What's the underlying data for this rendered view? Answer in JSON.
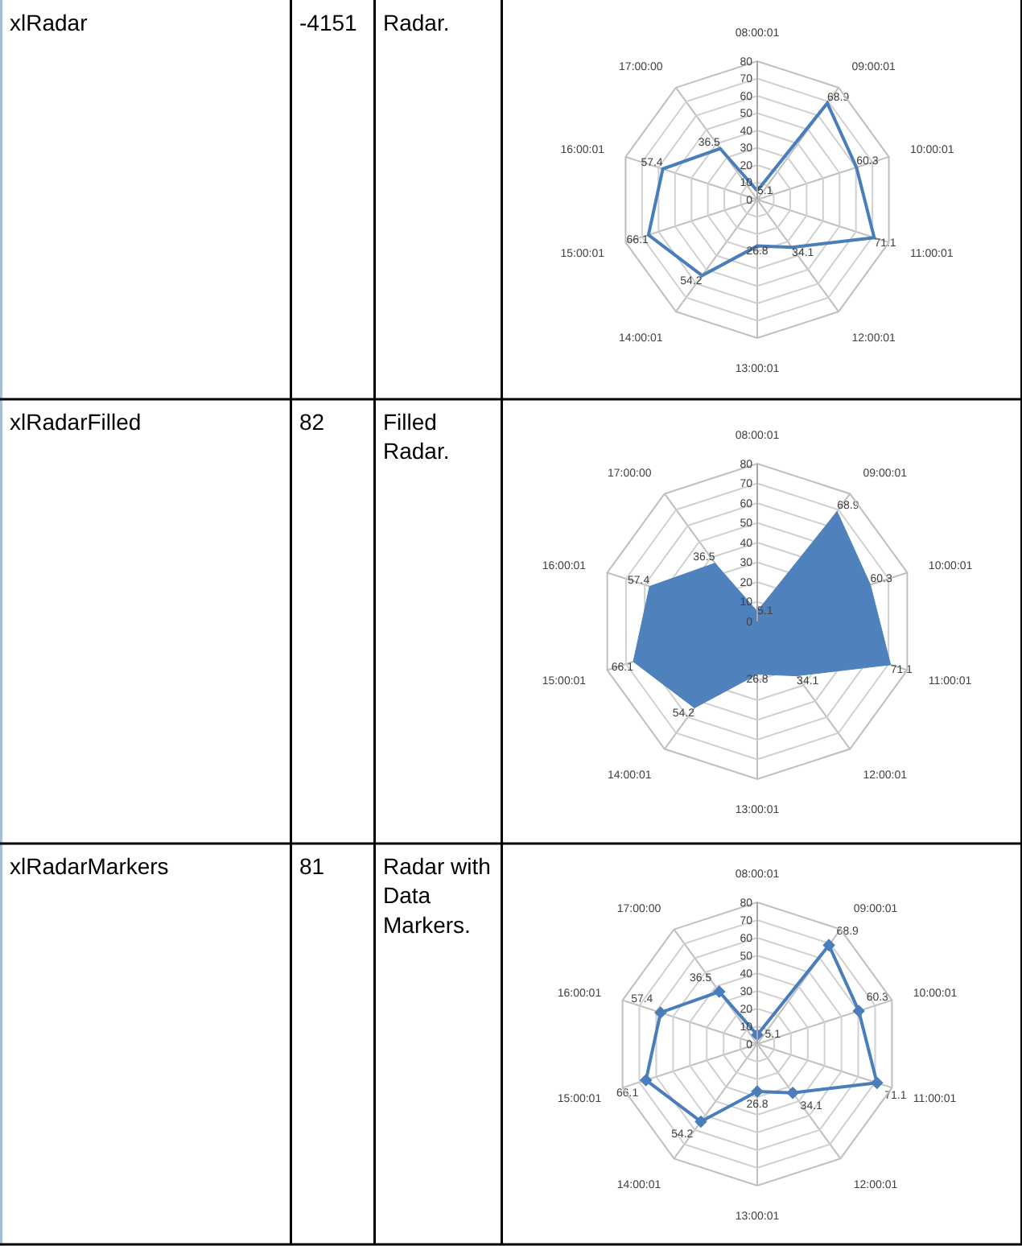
{
  "chart_data": [
    {
      "type": "other",
      "annotations": [
        "xlRadar",
        "-4151",
        "Radar."
      ]
    },
    {
      "type": "radar",
      "categories": [
        "08:00:01",
        "09:00:01",
        "10:00:01",
        "11:00:01",
        "12:00:01",
        "13:00:01",
        "14:00:01",
        "15:00:01",
        "16:00:01",
        "17:00:00"
      ],
      "series": [
        {
          "color": "#4a7ebb",
          "values": [
            5.1,
            68.9,
            60.3,
            71.1,
            34.1,
            26.8,
            54.2,
            66.1,
            57.4,
            36.5
          ]
        }
      ],
      "ylim": [
        0,
        80
      ],
      "yticks": [
        0,
        10,
        20,
        30,
        40,
        50,
        60,
        70,
        80
      ],
      "grid": true,
      "data_labels": true,
      "line_style": "solid"
    },
    {
      "type": "other",
      "annotations": [
        "xlRadarFilled",
        "82",
        "Filled Radar."
      ]
    },
    {
      "type": "radar",
      "categories": [
        "08:00:01",
        "09:00:01",
        "10:00:01",
        "11:00:01",
        "12:00:01",
        "13:00:01",
        "14:00:01",
        "15:00:01",
        "16:00:01",
        "17:00:00"
      ],
      "series": [
        {
          "type": "area",
          "color": "#4f81bd",
          "values": [
            5.1,
            68.9,
            60.3,
            71.1,
            34.1,
            26.8,
            54.2,
            66.1,
            57.4,
            36.5
          ]
        }
      ],
      "ylim": [
        0,
        80
      ],
      "yticks": [
        0,
        10,
        20,
        30,
        40,
        50,
        60,
        70,
        80
      ],
      "grid": true,
      "data_labels": true
    },
    {
      "type": "other",
      "annotations": [
        "xlRadarMarkers",
        "81",
        "Radar with Data Markers."
      ]
    },
    {
      "type": "radar",
      "categories": [
        "08:00:01",
        "09:00:01",
        "10:00:01",
        "11:00:01",
        "12:00:01",
        "13:00:01",
        "14:00:01",
        "15:00:01",
        "16:00:01",
        "17:00:00"
      ],
      "series": [
        {
          "color": "#4a7ebb",
          "values": [
            5.1,
            68.9,
            60.3,
            71.1,
            34.1,
            26.8,
            54.2,
            66.1,
            57.4,
            36.5
          ]
        }
      ],
      "ylim": [
        0,
        80
      ],
      "yticks": [
        0,
        10,
        20,
        30,
        40,
        50,
        60,
        70,
        80
      ],
      "grid": true,
      "data_labels": true,
      "marker": "diamond",
      "line_style": "solid"
    }
  ]
}
